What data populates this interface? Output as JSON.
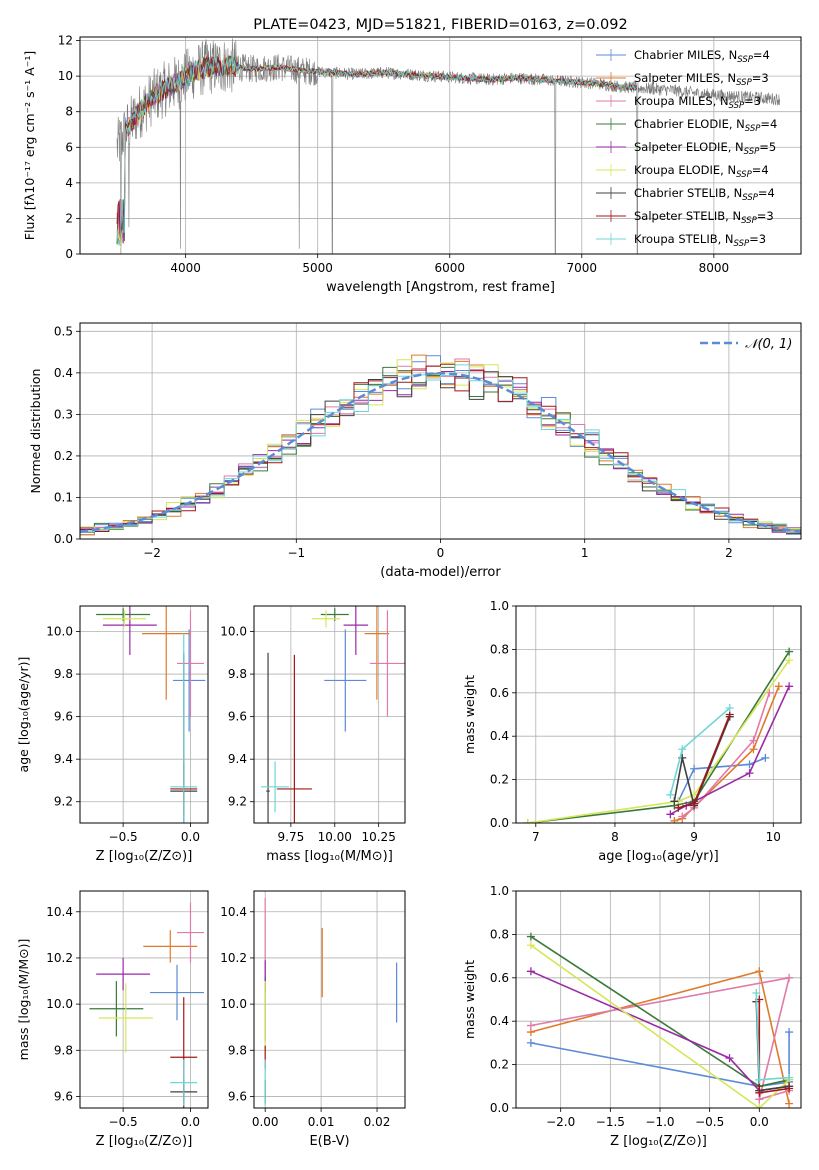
{
  "colors": {
    "chabrier_miles": "#5b8bd8",
    "salpeter_miles": "#e07a2a",
    "kroupa_miles": "#e07aa8",
    "chabrier_elodie": "#3a7a3a",
    "salpeter_elodie": "#9a2aa8",
    "kroupa_elodie": "#d6e65a",
    "chabrier_stelib": "#404040",
    "salpeter_stelib": "#a01818",
    "kroupa_stelib": "#6fd6d6",
    "data": "#7a7a7a"
  },
  "legend_models": [
    {
      "key": "chabrier_miles",
      "base": "Chabrier MILES, N",
      "sub": "SSP",
      "n": "=4"
    },
    {
      "key": "salpeter_miles",
      "base": "Salpeter MILES, N",
      "sub": "SSP",
      "n": "=3"
    },
    {
      "key": "kroupa_miles",
      "base": "Kroupa MILES, N",
      "sub": "SSP",
      "n": "=3"
    },
    {
      "key": "chabrier_elodie",
      "base": "Chabrier ELODIE, N",
      "sub": "SSP",
      "n": "=4"
    },
    {
      "key": "salpeter_elodie",
      "base": "Salpeter ELODIE, N",
      "sub": "SSP",
      "n": "=5"
    },
    {
      "key": "kroupa_elodie",
      "base": "Kroupa ELODIE, N",
      "sub": "SSP",
      "n": "=4"
    },
    {
      "key": "chabrier_stelib",
      "base": "Chabrier STELIB, N",
      "sub": "SSP",
      "n": "=4"
    },
    {
      "key": "salpeter_stelib",
      "base": "Salpeter STELIB, N",
      "sub": "SSP",
      "n": "=3"
    },
    {
      "key": "kroupa_stelib",
      "base": "Kroupa STELIB, N",
      "sub": "SSP",
      "n": "=3"
    }
  ],
  "chart_data": [
    {
      "id": "spectrum",
      "type": "line",
      "title": "PLATE=0423, MJD=51821, FIBERID=0163, z=0.092",
      "xlabel": "wavelength [Angstrom, rest frame]",
      "ylabel": "Flux [fλ10⁻¹⁷ erg cm⁻² s⁻¹ A⁻¹]",
      "xlim": [
        3200,
        8660
      ],
      "ylim": [
        0,
        12.2
      ],
      "xticks": [
        4000,
        5000,
        6000,
        7000,
        8000
      ],
      "yticks": [
        0,
        2,
        4,
        6,
        8,
        10,
        12
      ],
      "continuum": {
        "x": [
          3480,
          3550,
          3650,
          3750,
          3850,
          3950,
          4050,
          4150,
          4300,
          4500,
          4700,
          4900,
          5100,
          5300,
          5500,
          5700,
          5900,
          6100,
          6300,
          6500,
          6700,
          6900,
          7100,
          7300,
          7500,
          7700,
          7900,
          8100,
          8300,
          8500
        ],
        "y": [
          6.0,
          7.0,
          8.0,
          8.8,
          9.3,
          9.7,
          10.2,
          10.5,
          10.6,
          10.4,
          10.5,
          10.3,
          10.2,
          10.1,
          10.2,
          10.1,
          10.0,
          9.9,
          9.8,
          9.9,
          9.8,
          9.7,
          9.6,
          9.4,
          9.3,
          9.2,
          9.0,
          8.9,
          8.8,
          8.7
        ]
      },
      "model_span": [
        3480,
        7420
      ],
      "dips": [
        [
          3510,
          0
        ],
        [
          3570,
          1.5
        ],
        [
          3960,
          0.3
        ],
        [
          4860,
          0.3
        ],
        [
          5110,
          0
        ],
        [
          6800,
          0
        ],
        [
          7420,
          0
        ]
      ]
    },
    {
      "id": "residual_hist",
      "type": "area",
      "xlabel": "(data-model)/error",
      "ylabel": "Normed distribution",
      "xlim": [
        -2.5,
        2.5
      ],
      "ylim": [
        0,
        0.52
      ],
      "xticks": [
        -2,
        -1,
        0,
        1,
        2
      ],
      "xtick_labels": [
        "−2",
        "−1",
        "0",
        "1",
        "2"
      ],
      "yticks": [
        0,
        0.1,
        0.2,
        0.3,
        0.4,
        0.5
      ],
      "bin_width": 0.1,
      "legend_label": "𝒩(0, 1)"
    },
    {
      "id": "age_vs_Z",
      "type": "scatter",
      "xlabel": "Z [log₁₀(Z/Z⊙)]",
      "ylabel": "age  [log₁₀(age/yr)]",
      "xlim": [
        -0.82,
        0.13
      ],
      "ylim": [
        9.1,
        10.12
      ],
      "xticks": [
        -0.5,
        0.0
      ],
      "xtick_labels": [
        "−0.5",
        "0.0"
      ],
      "yticks": [
        9.2,
        9.4,
        9.6,
        9.8,
        10.0
      ],
      "points": [
        {
          "k": "chabrier_miles",
          "x": -0.01,
          "y": 9.77,
          "xe": 0.12,
          "ye": 0.24
        },
        {
          "k": "salpeter_miles",
          "x": -0.18,
          "y": 9.99,
          "xe": 0.18,
          "ye": 0.31
        },
        {
          "k": "kroupa_miles",
          "x": 0.0,
          "y": 9.85,
          "xe": 0.1,
          "ye": 0.25
        },
        {
          "k": "chabrier_elodie",
          "x": -0.5,
          "y": 10.08,
          "xe": 0.2,
          "ye": 0.03
        },
        {
          "k": "salpeter_elodie",
          "x": -0.45,
          "y": 10.03,
          "xe": 0.2,
          "ye": 0.14
        },
        {
          "k": "kroupa_elodie",
          "x": -0.49,
          "y": 10.06,
          "xe": 0.16,
          "ye": 0.04
        },
        {
          "k": "chabrier_stelib",
          "x": -0.05,
          "y": 9.25,
          "xe": 0.1,
          "ye": 0.65
        },
        {
          "k": "salpeter_stelib",
          "x": -0.05,
          "y": 9.26,
          "xe": 0.1,
          "ye": 0.12
        },
        {
          "k": "kroupa_stelib",
          "x": -0.05,
          "y": 9.27,
          "xe": 0.1,
          "ye": 0.72
        }
      ]
    },
    {
      "id": "age_vs_mass",
      "type": "scatter",
      "xlabel": "mass [log₁₀(M/M⊙)]",
      "ylabel": "",
      "xlim": [
        9.54,
        10.4
      ],
      "ylim": [
        9.1,
        10.12
      ],
      "xticks": [
        9.75,
        10.0,
        10.25
      ],
      "xtick_labels": [
        "9.75",
        "10.00",
        "10.25"
      ],
      "yticks": [
        9.2,
        9.4,
        9.6,
        9.8,
        10.0
      ],
      "points": [
        {
          "k": "chabrier_miles",
          "x": 10.06,
          "y": 9.77,
          "xe": 0.12,
          "ye": 0.24
        },
        {
          "k": "salpeter_miles",
          "x": 10.24,
          "y": 9.99,
          "xe": 0.07,
          "ye": 0.31
        },
        {
          "k": "kroupa_miles",
          "x": 10.3,
          "y": 9.85,
          "xe": 0.1,
          "ye": 0.25
        },
        {
          "k": "chabrier_elodie",
          "x": 10.0,
          "y": 10.08,
          "xe": 0.08,
          "ye": 0.03
        },
        {
          "k": "salpeter_elodie",
          "x": 10.12,
          "y": 10.03,
          "xe": 0.07,
          "ye": 0.14
        },
        {
          "k": "kroupa_elodie",
          "x": 9.95,
          "y": 10.06,
          "xe": 0.08,
          "ye": 0.04
        },
        {
          "k": "chabrier_stelib",
          "x": 9.62,
          "y": 9.25,
          "xe": 0.01,
          "ye": 0.65
        },
        {
          "k": "salpeter_stelib",
          "x": 9.77,
          "y": 9.26,
          "xe": 0.1,
          "ye": 0.63
        },
        {
          "k": "kroupa_stelib",
          "x": 9.66,
          "y": 9.27,
          "xe": 0.08,
          "ye": 0.12
        }
      ]
    },
    {
      "id": "weight_vs_age",
      "type": "line",
      "xlabel": "age  [log₁₀(age/yr)]",
      "ylabel": "mass weight",
      "xlim": [
        6.75,
        10.35
      ],
      "ylim": [
        0,
        1.0
      ],
      "xticks": [
        7,
        8,
        9,
        10
      ],
      "yticks": [
        0,
        0.2,
        0.4,
        0.6,
        0.8,
        1.0
      ],
      "series": [
        {
          "k": "chabrier_miles",
          "x": [
            8.8,
            9.0,
            9.7,
            9.9
          ],
          "y": [
            0.1,
            0.25,
            0.27,
            0.3
          ]
        },
        {
          "k": "salpeter_miles",
          "x": [
            8.75,
            8.85,
            9.75,
            10.07
          ],
          "y": [
            0.01,
            0.02,
            0.34,
            0.63
          ]
        },
        {
          "k": "kroupa_miles",
          "x": [
            8.85,
            9.0,
            9.75,
            9.95
          ],
          "y": [
            0.03,
            0.07,
            0.38,
            0.6
          ]
        },
        {
          "k": "chabrier_elodie",
          "x": [
            6.9,
            8.75,
            9.0,
            10.2
          ],
          "y": [
            0.0,
            0.08,
            0.1,
            0.79
          ]
        },
        {
          "k": "salpeter_elodie",
          "x": [
            8.7,
            8.9,
            9.7,
            10.2
          ],
          "y": [
            0.04,
            0.08,
            0.23,
            0.63
          ]
        },
        {
          "k": "kroupa_elodie",
          "x": [
            6.9,
            8.8,
            9.0,
            10.2
          ],
          "y": [
            0.0,
            0.1,
            0.13,
            0.75
          ]
        },
        {
          "k": "chabrier_stelib",
          "x": [
            8.75,
            8.85,
            9.0,
            9.45
          ],
          "y": [
            0.1,
            0.3,
            0.08,
            0.49
          ]
        },
        {
          "k": "salpeter_stelib",
          "x": [
            8.8,
            9.0,
            9.45
          ],
          "y": [
            0.07,
            0.09,
            0.5
          ]
        },
        {
          "k": "kroupa_stelib",
          "x": [
            8.7,
            8.85,
            9.45
          ],
          "y": [
            0.13,
            0.34,
            0.53
          ]
        }
      ]
    },
    {
      "id": "mass_vs_Z",
      "type": "scatter",
      "xlabel": "Z [log₁₀(Z/Z⊙)]",
      "ylabel": "mass [log₁₀(M/M⊙)]",
      "xlim": [
        -0.82,
        0.13
      ],
      "ylim": [
        9.55,
        10.49
      ],
      "xticks": [
        -0.5,
        0.0
      ],
      "xtick_labels": [
        "−0.5",
        "0.0"
      ],
      "yticks": [
        9.6,
        9.8,
        10.0,
        10.2,
        10.4
      ],
      "points": [
        {
          "k": "chabrier_miles",
          "x": -0.1,
          "y": 10.05,
          "xe": 0.2,
          "ye": 0.12
        },
        {
          "k": "salpeter_miles",
          "x": -0.15,
          "y": 10.25,
          "xe": 0.2,
          "ye": 0.07
        },
        {
          "k": "kroupa_miles",
          "x": 0.0,
          "y": 10.31,
          "xe": 0.1,
          "ye": 0.13
        },
        {
          "k": "chabrier_elodie",
          "x": -0.55,
          "y": 9.98,
          "xe": 0.2,
          "ye": 0.12
        },
        {
          "k": "salpeter_elodie",
          "x": -0.5,
          "y": 10.13,
          "xe": 0.2,
          "ye": 0.07
        },
        {
          "k": "kroupa_elodie",
          "x": -0.48,
          "y": 9.94,
          "xe": 0.2,
          "ye": 0.15
        },
        {
          "k": "chabrier_stelib",
          "x": -0.05,
          "y": 9.62,
          "xe": 0.1,
          "ye": 0.05
        },
        {
          "k": "salpeter_stelib",
          "x": -0.05,
          "y": 9.77,
          "xe": 0.1,
          "ye": 0.26
        },
        {
          "k": "kroupa_stelib",
          "x": -0.05,
          "y": 9.66,
          "xe": 0.1,
          "ye": 0.1
        }
      ]
    },
    {
      "id": "mass_vs_ebv",
      "type": "scatter",
      "xlabel": "E(B-V)",
      "ylabel": "",
      "xlim": [
        -0.002,
        0.025
      ],
      "ylim": [
        9.55,
        10.49
      ],
      "xticks": [
        0.0,
        0.01,
        0.02
      ],
      "xtick_labels": [
        "0.00",
        "0.01",
        "0.02"
      ],
      "yticks": [
        9.6,
        9.8,
        10.0,
        10.2,
        10.4
      ],
      "points": [
        {
          "k": "chabrier_miles",
          "x": 0.0235,
          "y": 10.05,
          "xe": 0,
          "ye": 0.13
        },
        {
          "k": "salpeter_miles",
          "x": 0.0102,
          "y": 10.18,
          "xe": 0,
          "ye": 0.15
        },
        {
          "k": "kroupa_miles",
          "x": 0.0,
          "y": 10.28,
          "xe": 0,
          "ye": 0.18
        },
        {
          "k": "chabrier_elodie",
          "x": 0.0,
          "y": 9.98,
          "xe": 0,
          "ye": 0.14
        },
        {
          "k": "salpeter_elodie",
          "x": 0.0,
          "y": 10.12,
          "xe": 0,
          "ye": 0.07
        },
        {
          "k": "kroupa_elodie",
          "x": 0.0,
          "y": 9.95,
          "xe": 0,
          "ye": 0.15
        },
        {
          "k": "chabrier_stelib",
          "x": 0.0,
          "y": 9.62,
          "xe": 0,
          "ye": 0.05
        },
        {
          "k": "salpeter_stelib",
          "x": 0.0,
          "y": 9.77,
          "xe": 0,
          "ye": 0.05
        },
        {
          "k": "kroupa_stelib",
          "x": 0.0,
          "y": 9.66,
          "xe": 0,
          "ye": 0.1
        }
      ]
    },
    {
      "id": "weight_vs_Z",
      "type": "line",
      "xlabel": "Z [log₁₀(Z/Z⊙)]",
      "ylabel": "mass weight",
      "xlim": [
        -2.45,
        0.42
      ],
      "ylim": [
        0,
        1.0
      ],
      "xticks": [
        -2.0,
        -1.5,
        -1.0,
        -0.5,
        0.0
      ],
      "xtick_labels": [
        "−2.0",
        "−1.5",
        "−1.0",
        "−0.5",
        "0.0"
      ],
      "yticks": [
        0,
        0.2,
        0.4,
        0.6,
        0.8,
        1.0
      ],
      "series": [
        {
          "k": "chabrier_miles",
          "x": [
            -2.3,
            0.0,
            0.3,
            0.3
          ],
          "y": [
            0.3,
            0.1,
            0.12,
            0.35
          ]
        },
        {
          "k": "salpeter_miles",
          "x": [
            -2.3,
            0.0,
            0.3
          ],
          "y": [
            0.35,
            0.63,
            0.02
          ]
        },
        {
          "k": "kroupa_miles",
          "x": [
            -2.3,
            0.3,
            0.0,
            0.3
          ],
          "y": [
            0.38,
            0.6,
            0.04,
            0.08
          ]
        },
        {
          "k": "chabrier_elodie",
          "x": [
            -2.3,
            0.0,
            0.3
          ],
          "y": [
            0.79,
            0.1,
            0.13
          ]
        },
        {
          "k": "salpeter_elodie",
          "x": [
            -2.3,
            -0.3,
            0.0,
            0.3
          ],
          "y": [
            0.63,
            0.23,
            0.08,
            0.1
          ]
        },
        {
          "k": "kroupa_elodie",
          "x": [
            -2.3,
            0.0,
            0.3
          ],
          "y": [
            0.75,
            0.0,
            0.13
          ]
        },
        {
          "k": "chabrier_stelib",
          "x": [
            -0.03,
            0.0,
            0.3
          ],
          "y": [
            0.49,
            0.08,
            0.1
          ]
        },
        {
          "k": "salpeter_stelib",
          "x": [
            0.0,
            0.0,
            0.3
          ],
          "y": [
            0.5,
            0.07,
            0.09
          ]
        },
        {
          "k": "kroupa_stelib",
          "x": [
            -0.03,
            0.0,
            0.3
          ],
          "y": [
            0.53,
            0.13,
            0.14
          ]
        }
      ]
    }
  ]
}
